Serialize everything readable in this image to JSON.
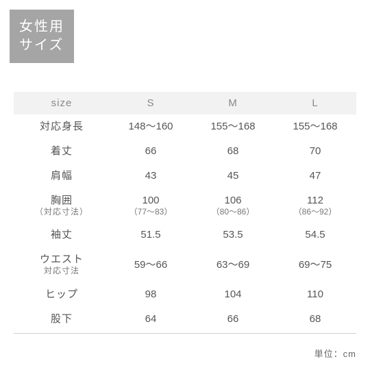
{
  "badge": {
    "line1": "女性用",
    "line2": "サイズ"
  },
  "columns": [
    "size",
    "S",
    "M",
    "L"
  ],
  "rows": [
    {
      "label": "対応身長",
      "s": "148〜160",
      "m": "155〜168",
      "l": "155〜168"
    },
    {
      "label": "着丈",
      "s": "66",
      "m": "68",
      "l": "70"
    },
    {
      "label": "肩幅",
      "s": "43",
      "m": "45",
      "l": "47"
    },
    {
      "label": "胸囲",
      "sublabel": "（対応寸法）",
      "s": "100",
      "s_sub": "（77〜83）",
      "m": "106",
      "m_sub": "（80〜86）",
      "l": "112",
      "l_sub": "（86〜92）"
    },
    {
      "label": "袖丈",
      "s": "51.5",
      "m": "53.5",
      "l": "54.5"
    },
    {
      "label": "ウエスト",
      "sublabel": "対応寸法",
      "s": "59〜66",
      "m": "63〜69",
      "l": "69〜75"
    },
    {
      "label": "ヒップ",
      "s": "98",
      "m": "104",
      "l": "110"
    },
    {
      "label": "股下",
      "s": "64",
      "m": "66",
      "l": "68"
    }
  ],
  "unit": "単位：cm",
  "colors": {
    "badge_bg": "#a5a5a5",
    "badge_text": "#ffffff",
    "header_bg": "#f2f2f2",
    "header_text": "#888888",
    "body_text": "#555555",
    "rule": "#cfcfcf",
    "background": "#ffffff"
  }
}
